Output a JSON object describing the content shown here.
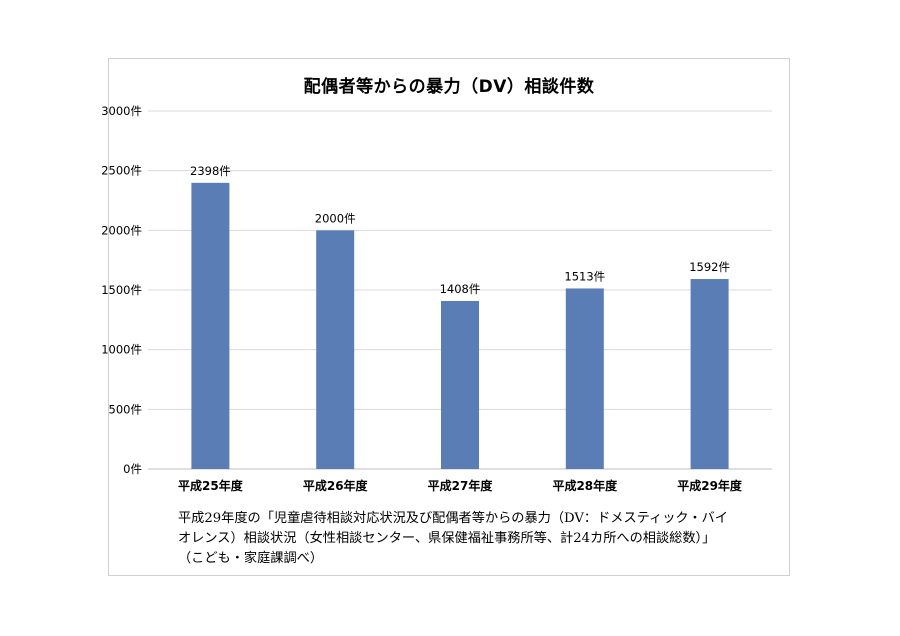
{
  "chart_data": {
    "type": "bar",
    "title": "配偶者等からの暴力（DV）相談件数",
    "xlabel": "",
    "ylabel": "",
    "categories": [
      "平成25年度",
      "平成26年度",
      "平成27年度",
      "平成28年度",
      "平成29年度"
    ],
    "values": [
      2398,
      2000,
      1408,
      1513,
      1592
    ],
    "data_labels": [
      "2398件",
      "2000件",
      "1408件",
      "1513件",
      "1592件"
    ],
    "yticks": [
      0,
      500,
      1000,
      1500,
      2000,
      2500,
      3000
    ],
    "ytick_labels": [
      "0件",
      "500件",
      "1000件",
      "1500件",
      "2000件",
      "2500件",
      "3000件"
    ],
    "ylim": [
      0,
      3000
    ],
    "grid": true,
    "legend": "none",
    "bar_color": "#5a7db5"
  },
  "note": {
    "lines": [
      "平成29年度の「児童虐待相談対応状況及び配偶者等からの暴力（DV：ドメスティック・バイ",
      "オレンス）相談状況（女性相談センター、県保健福祉事務所等、計24カ所への相談総数）」",
      "（こども・家庭課調べ）"
    ]
  }
}
